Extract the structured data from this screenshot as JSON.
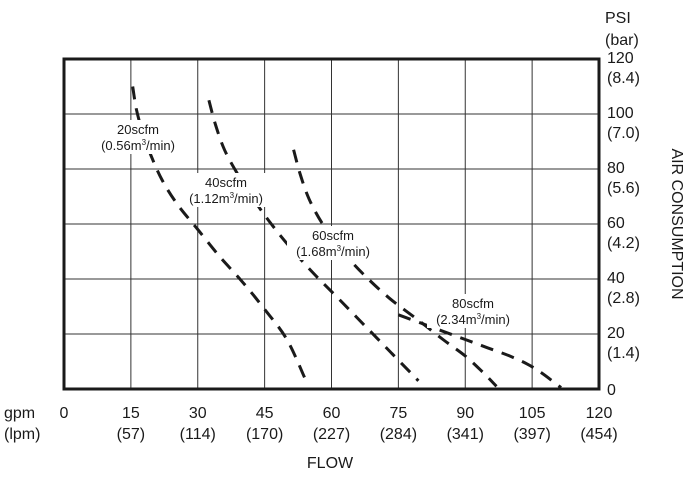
{
  "chart_data": {
    "type": "line",
    "title": "",
    "xlabel": "FLOW",
    "ylabel": "AIR CONSUMPTION",
    "x_unit_label": "gpm",
    "x_unit_label_secondary": "(lpm)",
    "y_unit_label": "PSI",
    "y_unit_label_secondary": "(bar)",
    "xlim": [
      0,
      120
    ],
    "ylim": [
      0,
      120
    ],
    "grid": true,
    "x_ticks": [
      {
        "value": 0,
        "label": "0",
        "sub": ""
      },
      {
        "value": 15,
        "label": "15",
        "sub": "(57)"
      },
      {
        "value": 30,
        "label": "30",
        "sub": "(114)"
      },
      {
        "value": 45,
        "label": "45",
        "sub": "(170)"
      },
      {
        "value": 60,
        "label": "60",
        "sub": "(227)"
      },
      {
        "value": 75,
        "label": "75",
        "sub": "(284)"
      },
      {
        "value": 90,
        "label": "90",
        "sub": "(341)"
      },
      {
        "value": 105,
        "label": "105",
        "sub": "(397)"
      },
      {
        "value": 120,
        "label": "120",
        "sub": "(454)"
      }
    ],
    "y_ticks": [
      {
        "value": 0,
        "label": "0",
        "sub": ""
      },
      {
        "value": 20,
        "label": "20",
        "sub": "(1.4)"
      },
      {
        "value": 40,
        "label": "40",
        "sub": "(2.8)"
      },
      {
        "value": 60,
        "label": "60",
        "sub": "(4.2)"
      },
      {
        "value": 80,
        "label": "80",
        "sub": "(5.6)"
      },
      {
        "value": 100,
        "label": "100",
        "sub": "(7.0)"
      },
      {
        "value": 120,
        "label": "120",
        "sub": "(8.4)"
      }
    ],
    "series": [
      {
        "name": "20scfm",
        "sub_prefix": "(0.56m",
        "sub_sup": "3",
        "sub_suffix": "/min)",
        "x": [
          15.4,
          16.2,
          17.5,
          19.5,
          22,
          25.5,
          30,
          35,
          40,
          45,
          50,
          54
        ],
        "y": [
          110,
          102,
          94,
          85,
          76,
          67,
          58,
          48,
          39,
          29,
          18,
          4
        ]
      },
      {
        "name": "40scfm",
        "sub_prefix": "(1.12m",
        "sub_sup": "3",
        "sub_suffix": "/min)",
        "x": [
          32.5,
          34,
          36,
          39,
          42.5,
          46.5,
          51,
          56,
          61.5,
          67.5,
          73.5,
          79.5
        ],
        "y": [
          105,
          96,
          87,
          78,
          69,
          60,
          51,
          42,
          33,
          23,
          13,
          3
        ]
      },
      {
        "name": "60scfm",
        "sub_prefix": "(1.68m",
        "sub_sup": "3",
        "sub_suffix": "/min)",
        "x": [
          51.5,
          53,
          55,
          58,
          62,
          67,
          73,
          79.5,
          85,
          90,
          94,
          97
        ],
        "y": [
          87,
          78,
          69,
          60,
          51,
          42,
          33,
          25,
          18,
          12,
          6,
          1
        ]
      },
      {
        "name": "80scfm",
        "sub_prefix": "(2.34m",
        "sub_sup": "3",
        "sub_suffix": "/min)",
        "x": [
          75,
          80,
          85,
          90,
          95,
          100,
          104,
          107,
          109.5,
          111.5
        ],
        "y": [
          27,
          24,
          21,
          18,
          15,
          12,
          9,
          6,
          3,
          0.5
        ]
      }
    ]
  }
}
